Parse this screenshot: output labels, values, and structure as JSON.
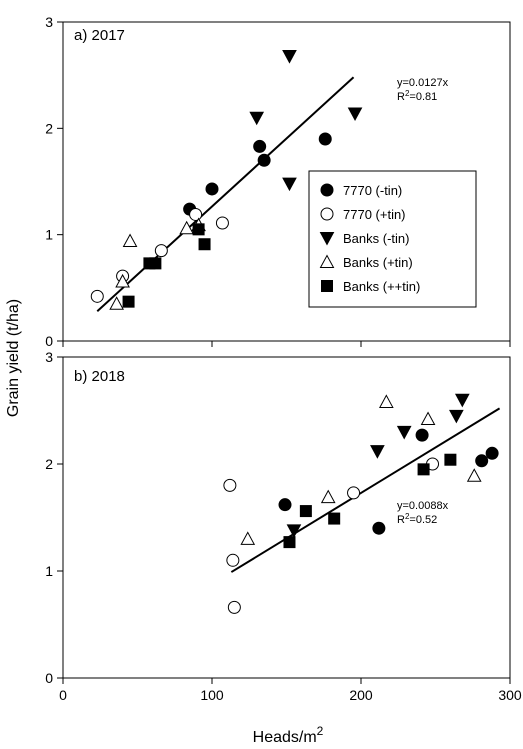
{
  "chart_data": [
    {
      "type": "scatter",
      "panel_label": "a) 2017",
      "xlim": [
        0,
        300
      ],
      "ylim": [
        0,
        3
      ],
      "xticks": [
        0,
        100,
        200,
        300
      ],
      "yticks": [
        0,
        1,
        2,
        3
      ],
      "series": [
        {
          "name": "7770 (-tin)",
          "marker": "filled-circle",
          "points": [
            [
              85,
              1.24
            ],
            [
              100,
              1.43
            ],
            [
              132,
              1.83
            ],
            [
              135,
              1.7
            ],
            [
              176,
              1.9
            ]
          ]
        },
        {
          "name": "7770 (+tin)",
          "marker": "open-circle",
          "points": [
            [
              23,
              0.42
            ],
            [
              40,
              0.61
            ],
            [
              66,
              0.85
            ],
            [
              89,
              1.19
            ],
            [
              107,
              1.11
            ]
          ]
        },
        {
          "name": "Banks (-tin)",
          "marker": "filled-triangle-down",
          "points": [
            [
              130,
              2.1
            ],
            [
              152,
              2.68
            ],
            [
              152,
              1.48
            ],
            [
              196,
              2.14
            ]
          ]
        },
        {
          "name": "Banks (+tin)",
          "marker": "open-triangle-up",
          "points": [
            [
              36,
              0.35
            ],
            [
              40,
              0.56
            ],
            [
              45,
              0.94
            ],
            [
              83,
              1.06
            ],
            [
              91,
              1.09
            ]
          ]
        },
        {
          "name": "Banks (++tin)",
          "marker": "filled-square",
          "points": [
            [
              44,
              0.37
            ],
            [
              58,
              0.73
            ],
            [
              62,
              0.73
            ],
            [
              91,
              1.05
            ],
            [
              95,
              0.91
            ]
          ]
        }
      ],
      "trendline": {
        "x": [
          23,
          195
        ],
        "y": [
          0.28,
          2.48
        ]
      },
      "annotation": {
        "equation": "y=0.0127x",
        "r2_prefix": "R",
        "r2_sup": "2",
        "r2_value": "=0.81"
      }
    },
    {
      "type": "scatter",
      "panel_label": "b) 2018",
      "xlim": [
        0,
        300
      ],
      "ylim": [
        0,
        3
      ],
      "xticks": [
        0,
        100,
        200,
        300
      ],
      "yticks": [
        0,
        1,
        2,
        3
      ],
      "series": [
        {
          "name": "7770 (-tin)",
          "marker": "filled-circle",
          "points": [
            [
              149,
              1.62
            ],
            [
              212,
              1.4
            ],
            [
              241,
              2.27
            ],
            [
              281,
              2.03
            ],
            [
              288,
              2.1
            ]
          ]
        },
        {
          "name": "7770 (+tin)",
          "marker": "open-circle",
          "points": [
            [
              112,
              1.8
            ],
            [
              114,
              1.1
            ],
            [
              115,
              0.66
            ],
            [
              195,
              1.73
            ],
            [
              248,
              2.0
            ]
          ]
        },
        {
          "name": "Banks (-tin)",
          "marker": "filled-triangle-down",
          "points": [
            [
              155,
              1.38
            ],
            [
              211,
              2.12
            ],
            [
              229,
              2.3
            ],
            [
              264,
              2.45
            ],
            [
              268,
              2.6
            ]
          ]
        },
        {
          "name": "Banks (+tin)",
          "marker": "open-triangle-up",
          "points": [
            [
              124,
              1.3
            ],
            [
              178,
              1.69
            ],
            [
              217,
              2.58
            ],
            [
              245,
              2.42
            ],
            [
              276,
              1.89
            ]
          ]
        },
        {
          "name": "Banks (++tin)",
          "marker": "filled-square",
          "points": [
            [
              152,
              1.27
            ],
            [
              163,
              1.56
            ],
            [
              182,
              1.49
            ],
            [
              242,
              1.95
            ],
            [
              260,
              2.04
            ]
          ]
        }
      ],
      "trendline": {
        "x": [
          113,
          293
        ],
        "y": [
          0.99,
          2.52
        ]
      },
      "annotation": {
        "equation": "y=0.0088x",
        "r2_prefix": "R",
        "r2_sup": "2",
        "r2_value": "=0.52"
      }
    }
  ],
  "axes": {
    "ylabel": "Grain yield (t/ha)",
    "xlabel_main": "Heads/m",
    "xlabel_sup": "2"
  },
  "legend": {
    "placement": "panel-a right-center",
    "items": [
      {
        "label": "7770 (-tin)",
        "marker": "filled-circle"
      },
      {
        "label": "7770 (+tin)",
        "marker": "open-circle"
      },
      {
        "label": "Banks (-tin)",
        "marker": "filled-triangle-down"
      },
      {
        "label": "Banks (+tin)",
        "marker": "open-triangle-up"
      },
      {
        "label": "Banks (++tin)",
        "marker": "filled-square"
      }
    ]
  }
}
